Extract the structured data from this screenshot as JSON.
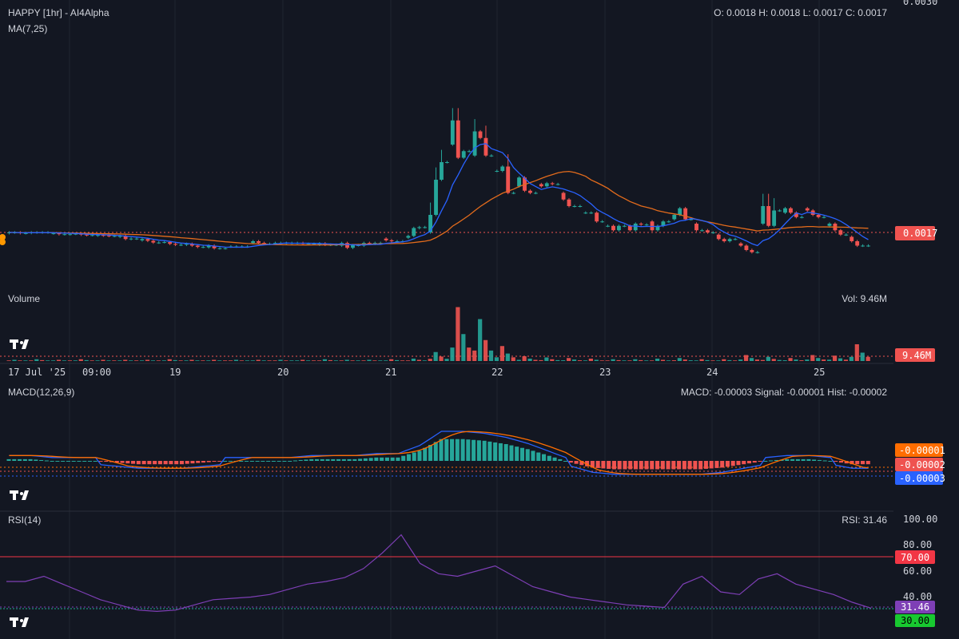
{
  "header": {
    "title": "HAPPY [1hr] - AI4Alpha",
    "ma_label": "MA(7,25)",
    "ohlc": "O: 0.0018 H: 0.0018 L: 0.0017 C: 0.0017",
    "top_axis_label": "0.0030"
  },
  "price": {
    "last_label": "0.0017",
    "last_value": 0.0017
  },
  "volume": {
    "label": "Volume",
    "readout": "Vol: 9.46M",
    "last_label": "9.46M"
  },
  "x_axis": {
    "labels": [
      "17 Jul '25",
      "09:00",
      "19",
      "20",
      "21",
      "22",
      "23",
      "24",
      "25"
    ]
  },
  "macd": {
    "label": "MACD(12,26,9)",
    "readout": "MACD: -0.00003 Signal: -0.00001 Hist: -0.00002",
    "tags": [
      "-0.00001",
      "-0.00002",
      "-0.00003"
    ]
  },
  "rsi": {
    "label": "RSI(14)",
    "readout": "RSI: 31.46",
    "ticks": [
      "100.00",
      "80.00",
      "60.00",
      "40.00"
    ],
    "overbought_label": "70.00",
    "oversold_label": "30.00",
    "current_label": "31.46",
    "current_value": 31.46
  },
  "colors": {
    "background": "#131722",
    "up": "#26a69a",
    "down": "#ef5350",
    "ma_fast": "#2962ff",
    "ma_slow": "#e36b1c",
    "rsi_line": "#7e3fb6",
    "rsi_overbought": "#f23645",
    "rsi_oversold": "#22ab94",
    "macd_line": "#2962ff",
    "signal_line": "#ff6d00"
  },
  "chart_data": {
    "type": "candlestick",
    "interval": "1hr",
    "x_range": [
      "17 Jul '25",
      "25 Jul '25"
    ],
    "price_anchor": {
      "visible_top_tick": 0.003,
      "last_close": 0.0017
    },
    "price_shape": [
      [
        -1.5,
        0,
        0,
        -1.5
      ],
      [
        -1.2,
        0,
        0,
        0
      ],
      [
        -2,
        -2,
        -4,
        -4
      ],
      [
        -3,
        -3,
        -5,
        -6
      ],
      [
        -7,
        -6,
        -7,
        -8
      ],
      [
        -10,
        -8,
        -15,
        -14
      ],
      [
        -18,
        -15,
        -19,
        -23
      ],
      [
        -22,
        -22,
        -26,
        -28
      ],
      [
        -28,
        -26,
        -30,
        -33
      ],
      [
        -34,
        -30,
        -36,
        -36
      ],
      [
        -32,
        -32,
        -32,
        -32
      ],
      [
        -24,
        -20,
        -24,
        -26
      ],
      [
        -24,
        -24,
        -24,
        -24
      ],
      [
        -24,
        -24,
        -26,
        -26
      ],
      [
        -28,
        -25,
        -28,
        -28
      ],
      [
        -30,
        -24,
        -35,
        -29
      ],
      [
        -30,
        -24,
        -26,
        -24
      ],
      [
        -14,
        -18,
        -20,
        -20
      ],
      [
        -12,
        -8,
        10,
        12
      ],
      [
        0,
        40,
        120,
        160
      ],
      [
        200,
        255,
        170,
        185
      ],
      [
        175,
        230,
        215,
        175
      ],
      [
        140,
        140,
        150,
        90
      ],
      [
        105,
        125,
        95,
        90
      ],
      [
        110,
        105,
        112,
        110
      ],
      [
        90,
        75,
        60,
        60
      ],
      [
        45,
        45,
        45,
        25
      ],
      [
        15,
        15,
        5,
        15
      ],
      [
        15,
        5,
        20,
        18
      ],
      [
        25,
        5,
        15,
        25
      ],
      [
        30,
        40,
        55,
        30
      ],
      [
        20,
        5,
        5,
        0
      ],
      [
        -5,
        -15,
        -20,
        -15
      ],
      [
        -25,
        -30,
        -40,
        -45
      ],
      [
        20,
        60,
        15,
        50
      ],
      [
        45,
        55,
        45,
        35
      ],
      [
        55,
        50,
        40,
        35
      ],
      [
        15,
        20,
        5,
        -5
      ],
      [
        -10,
        -20,
        -30,
        -30
      ]
    ],
    "volume_shape": [
      2,
      3,
      2,
      3,
      2,
      2,
      2,
      3,
      2,
      2,
      2,
      2,
      2,
      2,
      3,
      2,
      2,
      3,
      4,
      15,
      90,
      70,
      25,
      8,
      6,
      5,
      4,
      3,
      3,
      4,
      5,
      3,
      3,
      10,
      7,
      5,
      10,
      9,
      28
    ],
    "macd_shape": [
      1,
      1,
      0,
      0,
      0,
      -1,
      -2,
      -2,
      -2,
      -1,
      0,
      0,
      0,
      0,
      1,
      1,
      1,
      2,
      2,
      6,
      13,
      13,
      12,
      10,
      7,
      3,
      -1,
      -4,
      -5,
      -5,
      -5,
      -5,
      -5,
      -4,
      -2,
      0,
      1,
      1,
      0,
      -2
    ],
    "rsi_values": [
      52,
      52,
      56,
      50,
      44,
      38,
      34,
      30,
      29,
      30,
      34,
      38,
      39,
      40,
      42,
      46,
      50,
      52,
      55,
      62,
      74,
      88,
      66,
      58,
      56,
      60,
      64,
      56,
      48,
      44,
      40,
      38,
      36,
      34,
      33,
      32,
      50,
      56,
      44,
      42,
      54,
      58,
      50,
      46,
      42,
      36,
      31.46
    ]
  }
}
